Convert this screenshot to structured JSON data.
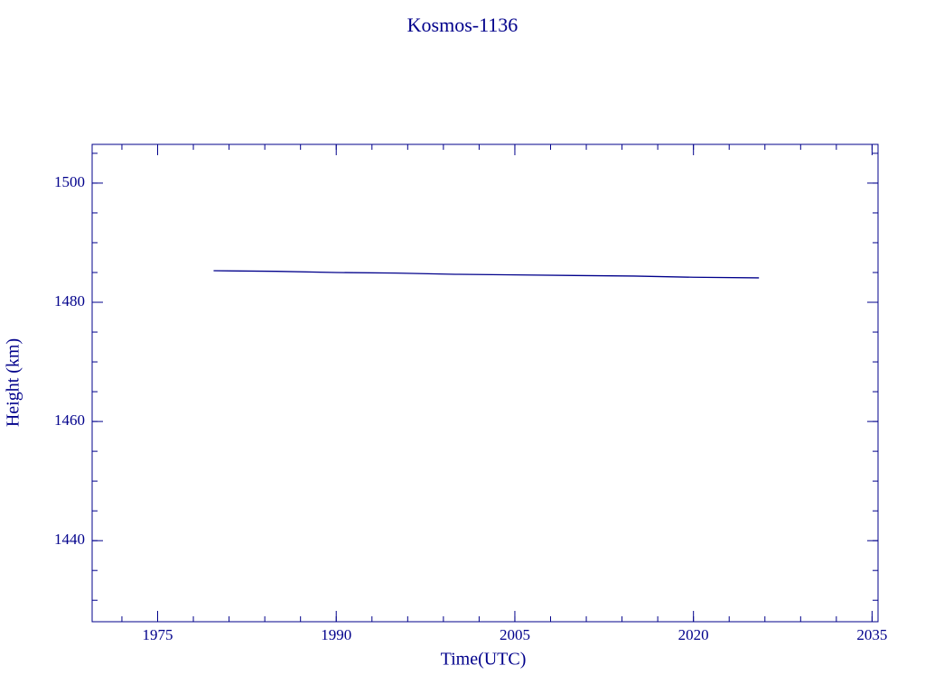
{
  "chart_data": {
    "type": "line",
    "title": "Kosmos-1136",
    "xlabel": "Time(UTC)",
    "ylabel": "Height (km)",
    "x": [
      1979.7,
      1985,
      1990,
      1995,
      2000,
      2005,
      2010,
      2015,
      2020,
      2025.5
    ],
    "series": [
      {
        "name": "Height",
        "color": "#00008b",
        "values": [
          1485.3,
          1485.2,
          1485.0,
          1484.9,
          1484.7,
          1484.6,
          1484.5,
          1484.4,
          1484.2,
          1484.1
        ]
      }
    ],
    "xlim": [
      1969.5,
      2035.5
    ],
    "xticks": [
      1975,
      1990,
      2005,
      2020,
      2035
    ],
    "ylim": [
      1426.4,
      1506.5
    ],
    "yticks": [
      1440,
      1460,
      1480,
      1500
    ],
    "axis_color": "#00008b",
    "grid": false
  }
}
